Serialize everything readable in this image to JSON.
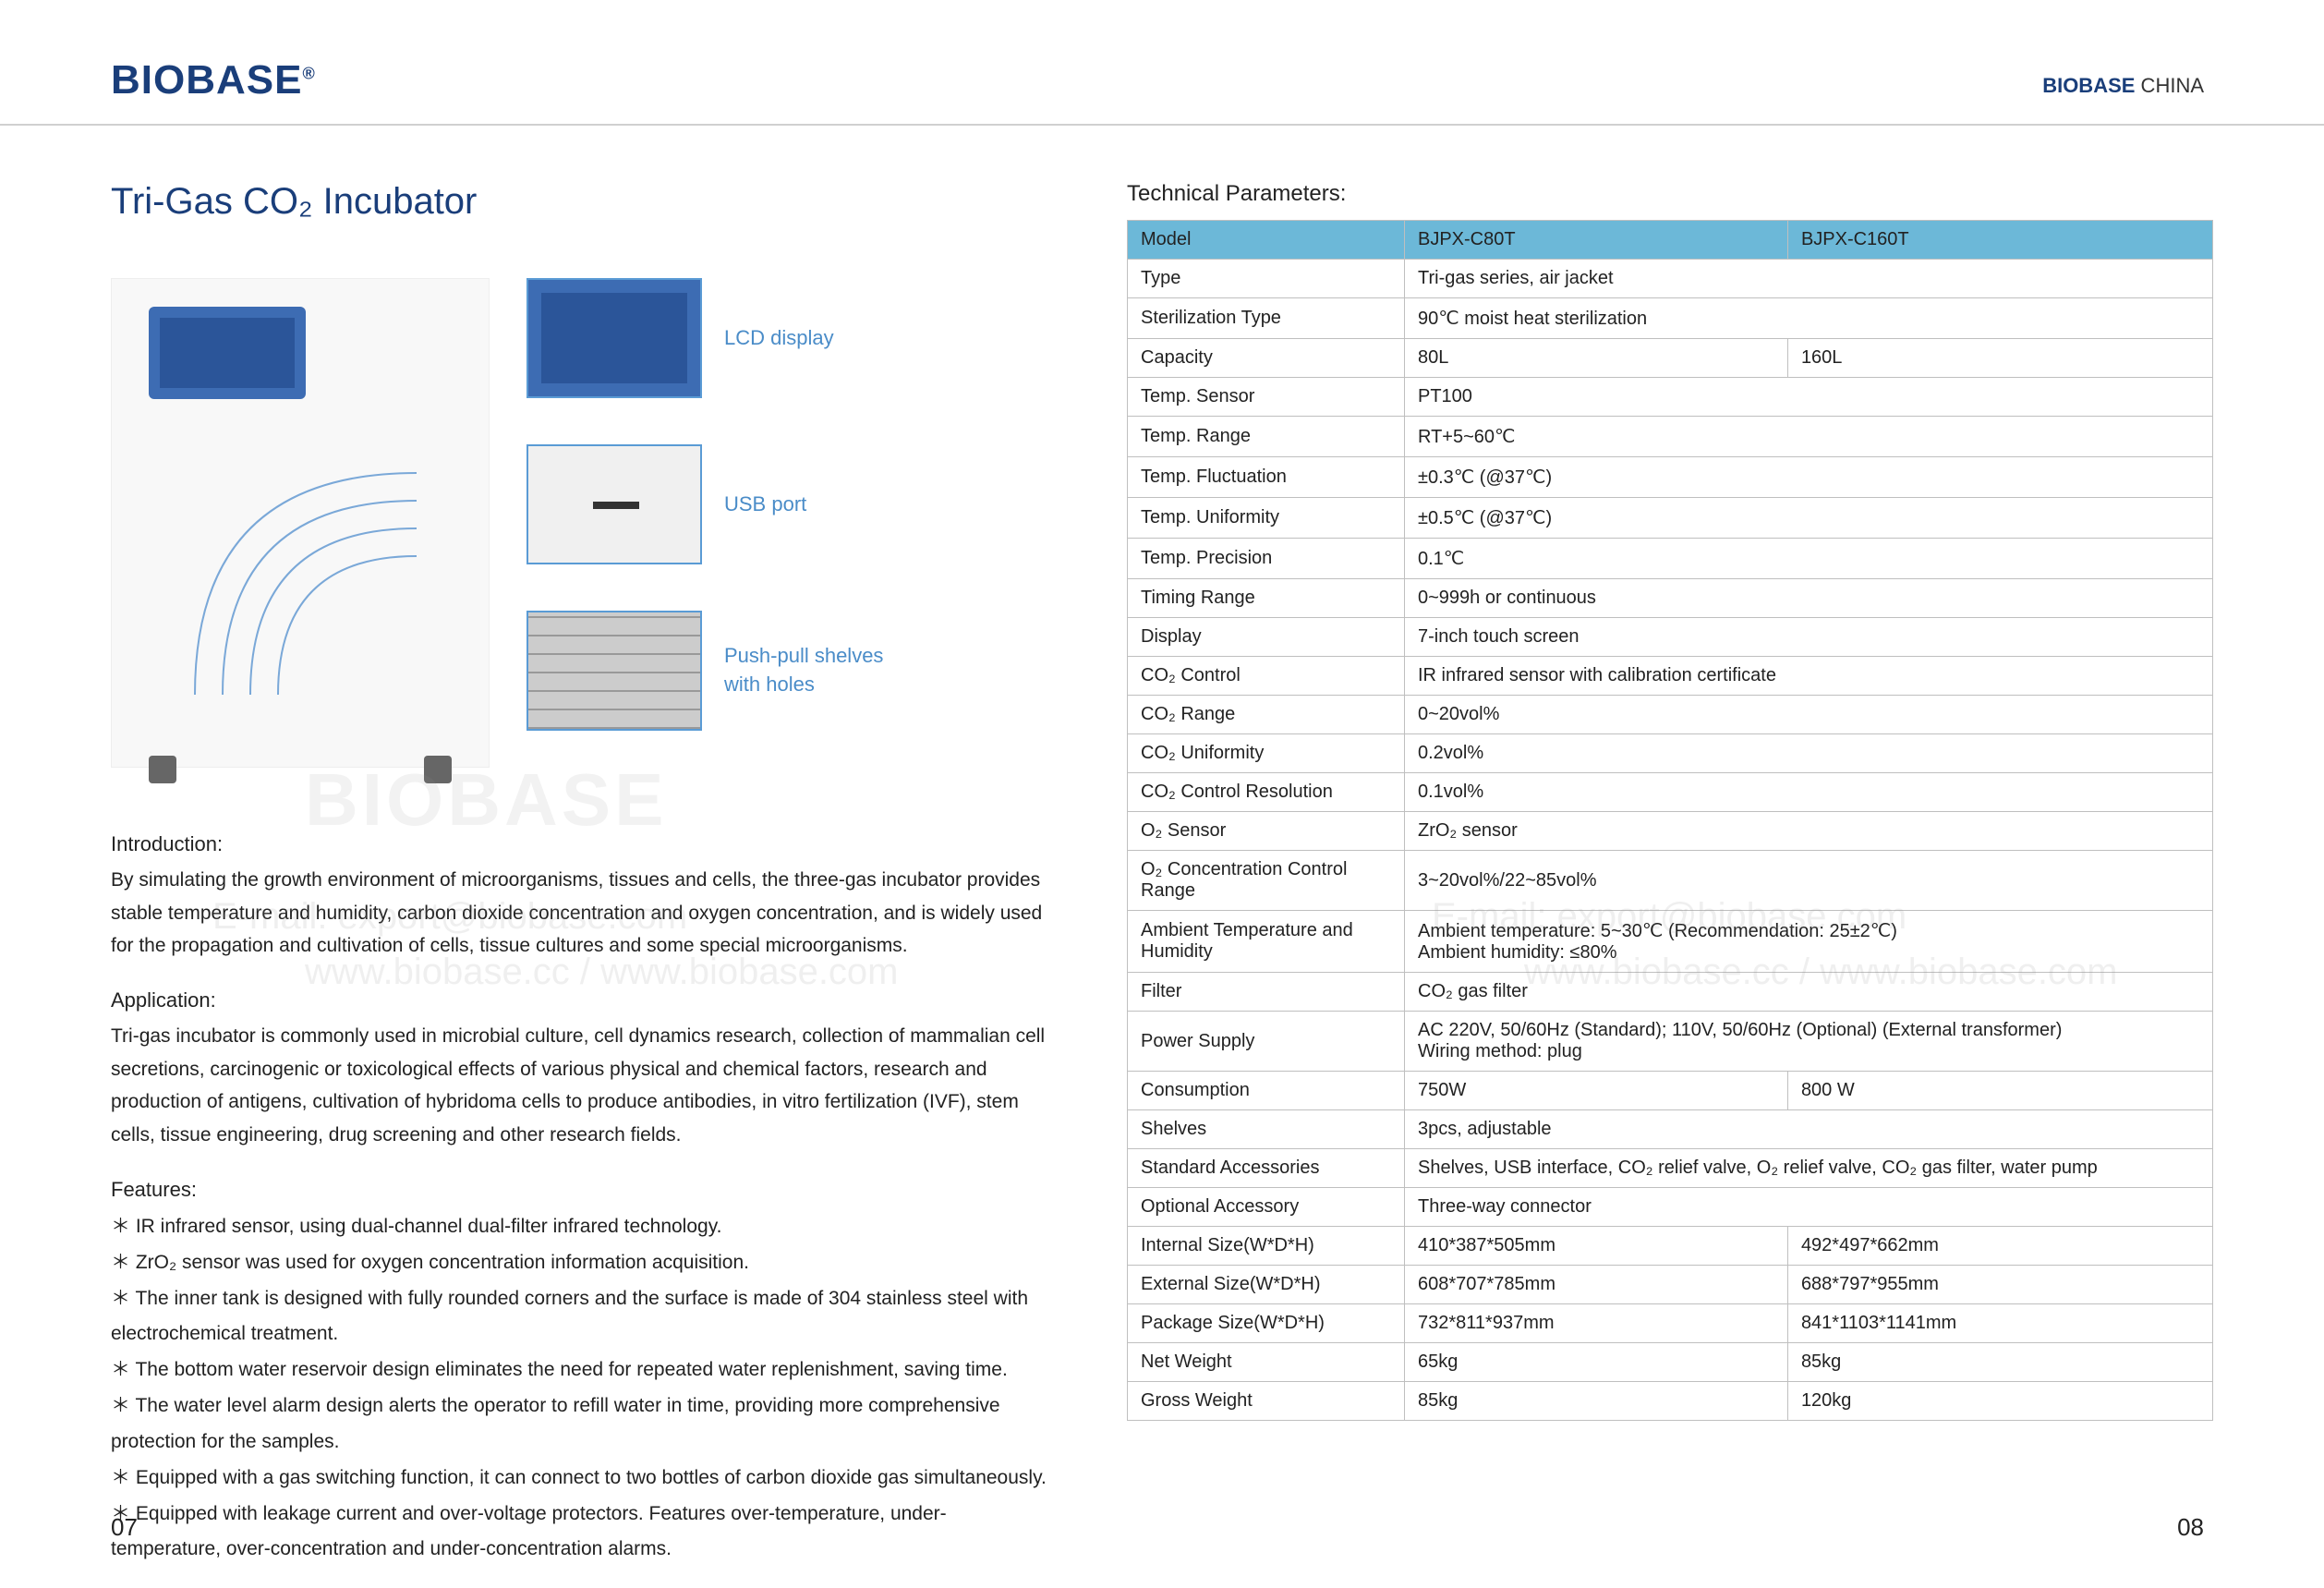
{
  "header": {
    "logo_left": "BIOBASE",
    "logo_right_brand": "BIOBASE",
    "logo_right_suffix": " CHINA"
  },
  "title": "Tri-Gas CO₂ Incubator",
  "callouts": {
    "lcd": "LCD display",
    "usb": "USB port",
    "shelf": "Push-pull shelves\nwith holes"
  },
  "intro_head": "Introduction:",
  "intro_body": "By simulating the growth environment of microorganisms, tissues and cells, the three-gas incubator provides stable temperature and humidity, carbon dioxide concentration and oxygen concentration, and is widely used for the propagation and cultivation of cells, tissue cultures and some special microorganisms.",
  "app_head": "Application:",
  "app_body": "Tri-gas incubator is commonly used in microbial culture, cell dynamics research, collection of mammalian cell secretions, carcinogenic or toxicological effects of various physical and chemical factors, research and production of antigens, cultivation of hybridoma cells to produce antibodies, in vitro fertilization (IVF), stem cells, tissue engineering, drug screening and other research fields.",
  "feat_head": "Features:",
  "features": [
    "IR infrared sensor, using dual-channel dual-filter infrared technology.",
    "ZrO₂ sensor was used for oxygen concentration information acquisition.",
    "The inner tank is designed with fully rounded corners and the surface is made of 304 stainless steel with electrochemical treatment.",
    "The bottom water reservoir design eliminates the need for repeated water replenishment, saving time.",
    "The water level alarm design alerts the operator to refill water in time, providing more comprehensive protection for the samples.",
    "Equipped with a gas switching function, it can connect to two bottles of carbon dioxide gas simultaneously.",
    "Equipped with leakage current and over-voltage protectors. Features over-temperature, under-temperature, over-concentration and under-concentration alarms."
  ],
  "tech_title": "Technical Parameters:",
  "spec": {
    "columns": [
      "Model",
      "BJPX-C80T",
      "BJPX-C160T"
    ],
    "rows": [
      {
        "param": "Type",
        "vals": [
          "Tri-gas series, air jacket"
        ],
        "span": true
      },
      {
        "param": "Sterilization Type",
        "vals": [
          "90℃ moist heat sterilization"
        ],
        "span": true
      },
      {
        "param": "Capacity",
        "vals": [
          "80L",
          "160L"
        ],
        "span": false
      },
      {
        "param": "Temp. Sensor",
        "vals": [
          "PT100"
        ],
        "span": true
      },
      {
        "param": "Temp. Range",
        "vals": [
          "RT+5~60℃"
        ],
        "span": true
      },
      {
        "param": "Temp. Fluctuation",
        "vals": [
          "±0.3℃ (@37℃)"
        ],
        "span": true
      },
      {
        "param": "Temp. Uniformity",
        "vals": [
          "±0.5℃ (@37℃)"
        ],
        "span": true
      },
      {
        "param": "Temp. Precision",
        "vals": [
          "0.1℃"
        ],
        "span": true
      },
      {
        "param": "Timing Range",
        "vals": [
          "0~999h or continuous"
        ],
        "span": true
      },
      {
        "param": "Display",
        "vals": [
          "7-inch touch screen"
        ],
        "span": true
      },
      {
        "param": "CO₂ Control",
        "vals": [
          "IR infrared sensor with calibration certificate"
        ],
        "span": true
      },
      {
        "param": "CO₂ Range",
        "vals": [
          "0~20vol%"
        ],
        "span": true
      },
      {
        "param": "CO₂ Uniformity",
        "vals": [
          "0.2vol%"
        ],
        "span": true
      },
      {
        "param": "CO₂ Control Resolution",
        "vals": [
          "0.1vol%"
        ],
        "span": true
      },
      {
        "param": "O₂ Sensor",
        "vals": [
          "ZrO₂ sensor"
        ],
        "span": true
      },
      {
        "param": "O₂ Concentration Control Range",
        "vals": [
          "3~20vol%/22~85vol%"
        ],
        "span": true
      },
      {
        "param": "Ambient Temperature and Humidity",
        "vals": [
          "Ambient temperature: 5~30℃ (Recommendation: 25±2℃)\nAmbient humidity: ≤80%"
        ],
        "span": true
      },
      {
        "param": "Filter",
        "vals": [
          "CO₂ gas filter"
        ],
        "span": true
      },
      {
        "param": "Power Supply",
        "vals": [
          "AC 220V, 50/60Hz (Standard); 110V, 50/60Hz (Optional) (External transformer)\nWiring method: plug"
        ],
        "span": true
      },
      {
        "param": "Consumption",
        "vals": [
          "750W",
          "800 W"
        ],
        "span": false
      },
      {
        "param": "Shelves",
        "vals": [
          "3pcs, adjustable"
        ],
        "span": true
      },
      {
        "param": "Standard Accessories",
        "vals": [
          "Shelves, USB interface, CO₂ relief valve, O₂ relief valve, CO₂ gas filter, water pump"
        ],
        "span": true
      },
      {
        "param": "Optional Accessory",
        "vals": [
          "Three-way connector"
        ],
        "span": true
      },
      {
        "param": "Internal Size(W*D*H)",
        "vals": [
          "410*387*505mm",
          "492*497*662mm"
        ],
        "span": false
      },
      {
        "param": "External Size(W*D*H)",
        "vals": [
          "608*707*785mm",
          "688*797*955mm"
        ],
        "span": false
      },
      {
        "param": "Package Size(W*D*H)",
        "vals": [
          "732*811*937mm",
          "841*1103*1141mm"
        ],
        "span": false
      },
      {
        "param": "Net Weight",
        "vals": [
          "65kg",
          "85kg"
        ],
        "span": false
      },
      {
        "param": "Gross Weight",
        "vals": [
          "85kg",
          "120kg"
        ],
        "span": false
      }
    ]
  },
  "watermarks": {
    "brand": "BIOBASE",
    "email_left": "E-mail: export@biobase.com",
    "url_left": "www.biobase.cc / www.biobase.com",
    "email_right": "E-mail: export@biobase.com",
    "url_right": "www.biobase.cc / www.biobase.com"
  },
  "page_left": "07",
  "page_right": "08",
  "colors": {
    "brand_blue": "#1a3e7a",
    "accent_blue": "#4a8cc8",
    "table_header": "#6cb8d8",
    "border": "#bfbfbf"
  }
}
